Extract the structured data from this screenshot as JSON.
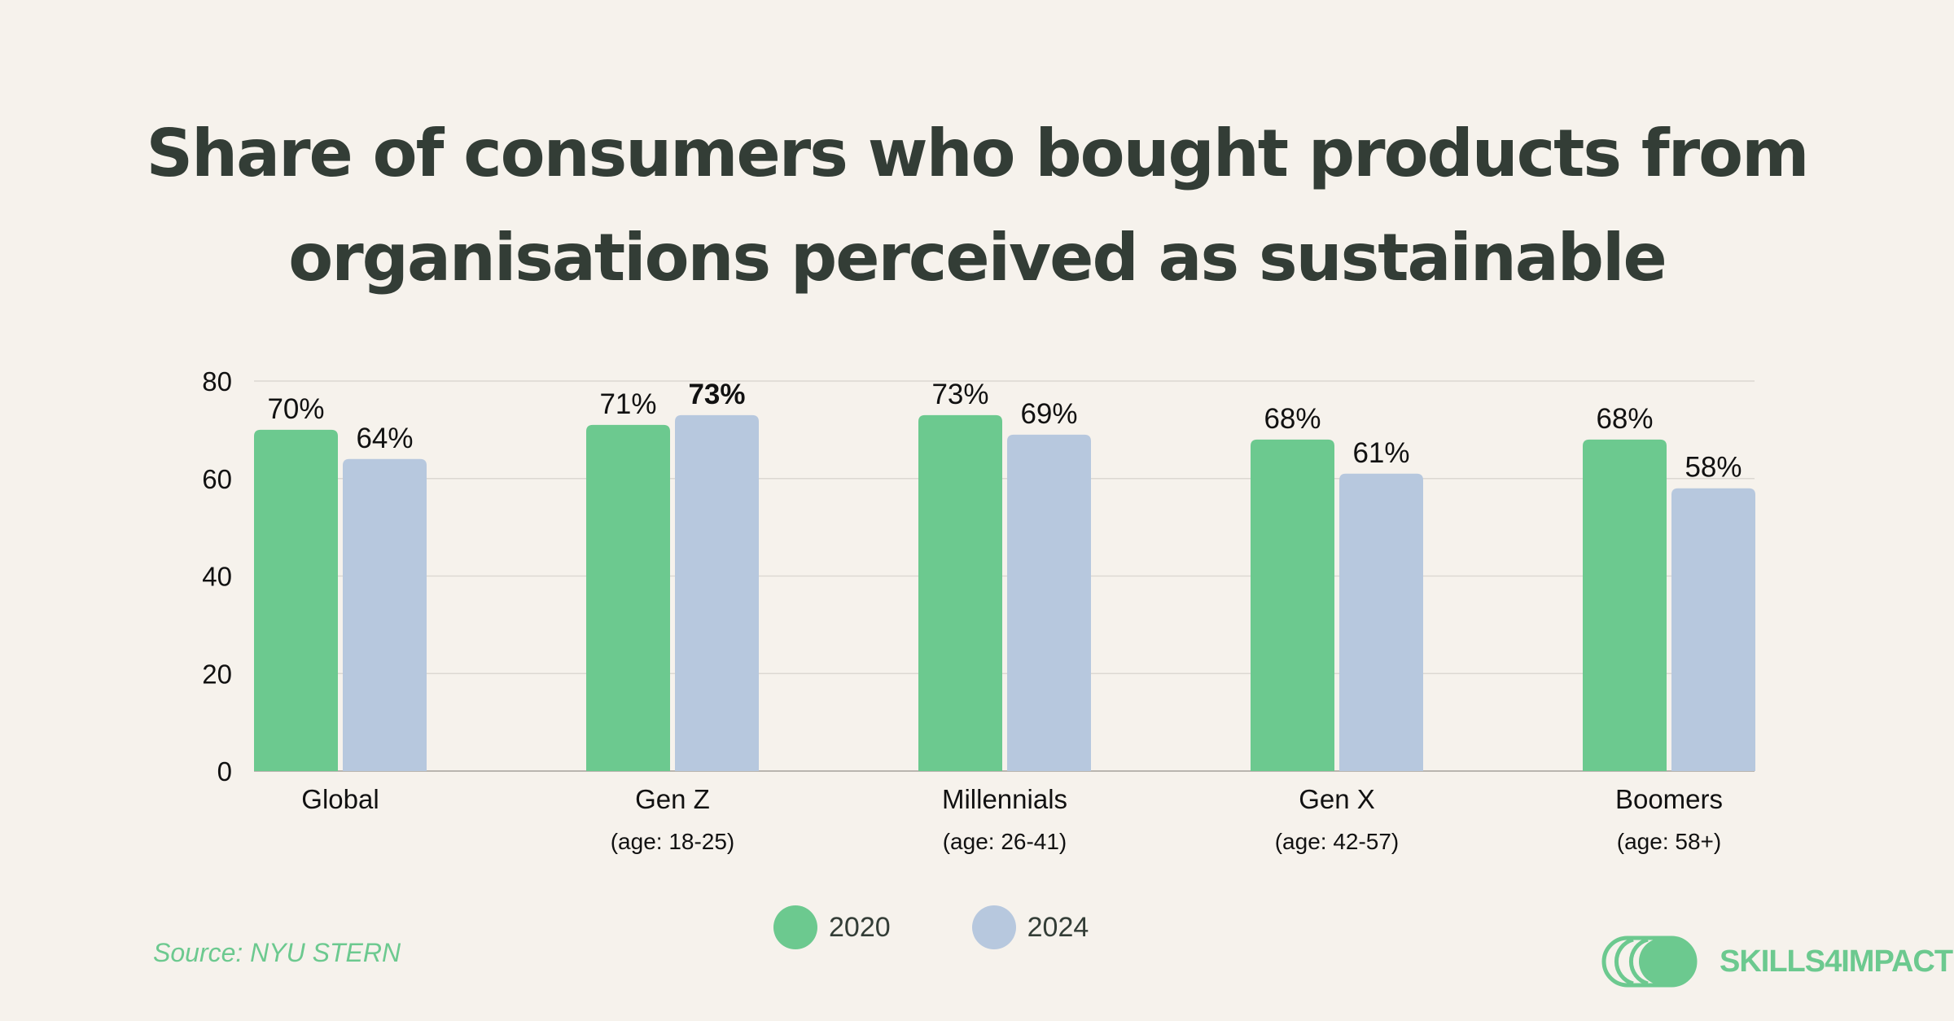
{
  "title_lines": [
    "Share of consumers who bought products from",
    "organisations perceived as sustainable"
  ],
  "source": "Source:  NYU STERN",
  "brand": "SKILLS4IMPACT",
  "colors": {
    "series_2020": "#6cc98f",
    "series_2024": "#b7c8de",
    "background": "#f6f2ec",
    "title": "#333d36",
    "grid": "#dcd8d2"
  },
  "legend": [
    {
      "label": "2020",
      "color": "#6cc98f"
    },
    {
      "label": "2024",
      "color": "#b7c8de"
    }
  ],
  "chart_data": {
    "type": "bar",
    "title": "Share of consumers who bought products from organisations perceived as sustainable",
    "categories": [
      "Global",
      "Gen Z",
      "Millennials",
      "Gen X",
      "Boomers"
    ],
    "category_sublabels": [
      "",
      "(age: 18-25)",
      "(age: 26-41)",
      "(age: 42-57)",
      "(age: 58+)"
    ],
    "series": [
      {
        "name": "2020",
        "values": [
          70,
          71,
          73,
          68,
          68
        ],
        "labels": [
          "70%",
          "71%",
          "73%",
          "68%",
          "68%"
        ]
      },
      {
        "name": "2024",
        "values": [
          64,
          73,
          69,
          61,
          58
        ],
        "labels": [
          "64%",
          "73%",
          "69%",
          "61%",
          "58%"
        ]
      }
    ],
    "highlighted_label": {
      "series": "2024",
      "category": "Gen Z"
    },
    "yticks": [
      0,
      20,
      40,
      60,
      80
    ],
    "ylim": [
      0,
      80
    ],
    "xlabel": "",
    "ylabel": "",
    "grid": true,
    "legend_position": "bottom-center"
  }
}
